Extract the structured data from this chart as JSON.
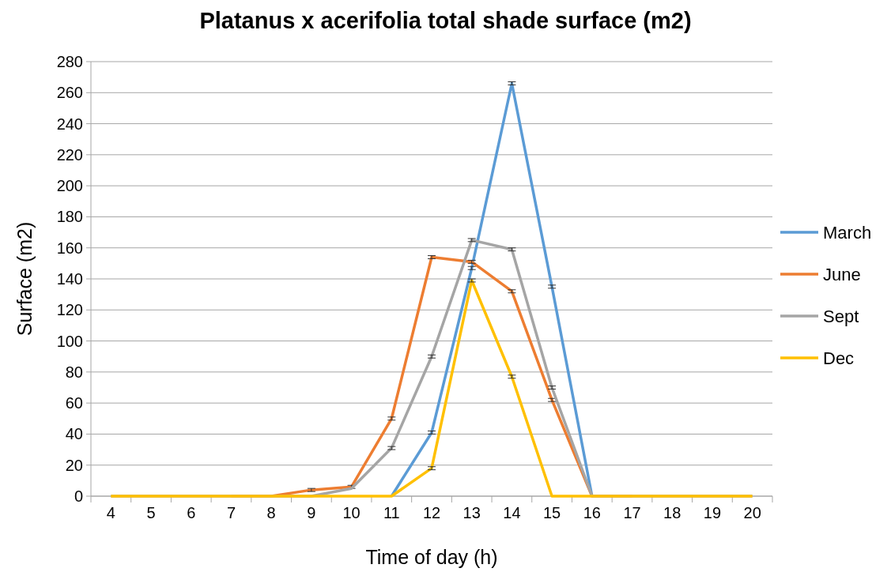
{
  "chart_data": {
    "type": "line",
    "title": "Platanus x acerifolia total shade surface (m2)",
    "xlabel": "Time of day (h)",
    "ylabel": "Surface (m2)",
    "categories": [
      "4",
      "5",
      "6",
      "7",
      "8",
      "9",
      "10",
      "11",
      "12",
      "13",
      "14",
      "15",
      "16",
      "17",
      "18",
      "19",
      "20"
    ],
    "series": [
      {
        "name": "March",
        "color": "#5b9bd5",
        "values": [
          null,
          null,
          null,
          null,
          null,
          null,
          null,
          0,
          41,
          147,
          266,
          135,
          0,
          null,
          null,
          null,
          null
        ],
        "errors": [
          null,
          null,
          null,
          null,
          null,
          null,
          null,
          null,
          1,
          1,
          1,
          1,
          null,
          null,
          null,
          null,
          null
        ]
      },
      {
        "name": "June",
        "color": "#ed7d31",
        "values": [
          null,
          null,
          null,
          0,
          0,
          4,
          6,
          50,
          154,
          151,
          132,
          62,
          0,
          0,
          null,
          null,
          null
        ],
        "errors": [
          null,
          null,
          null,
          null,
          null,
          1,
          1,
          1,
          1,
          1,
          1,
          1,
          null,
          null,
          null,
          null,
          null
        ]
      },
      {
        "name": "Sept",
        "color": "#a5a5a5",
        "values": [
          0,
          0,
          0,
          0,
          0,
          0,
          5,
          31,
          90,
          165,
          159,
          70,
          0,
          0,
          0,
          0,
          0
        ],
        "errors": [
          null,
          null,
          null,
          null,
          null,
          null,
          null,
          1,
          1,
          1,
          1,
          1,
          null,
          null,
          null,
          null,
          null
        ]
      },
      {
        "name": "Dec",
        "color": "#ffc000",
        "values": [
          0,
          0,
          0,
          0,
          0,
          0,
          0,
          0,
          18,
          139,
          77,
          0,
          0,
          0,
          0,
          0,
          0
        ],
        "errors": [
          null,
          null,
          null,
          null,
          null,
          null,
          null,
          null,
          1,
          1,
          1,
          null,
          null,
          null,
          null,
          null,
          null
        ]
      }
    ],
    "ylim": [
      0,
      280
    ],
    "yticks": [
      0,
      20,
      40,
      60,
      80,
      100,
      120,
      140,
      160,
      180,
      200,
      220,
      240,
      260,
      280
    ],
    "grid": "y",
    "legend": "right",
    "marker": "none",
    "line_style": "solid"
  }
}
